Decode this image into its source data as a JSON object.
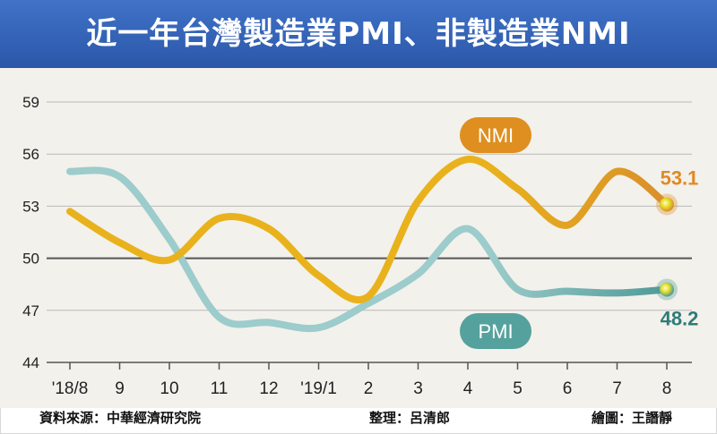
{
  "title": "近一年台灣製造業PMI、非製造業NMI",
  "footer": {
    "source": "資料來源：中華經濟研究院",
    "editor": "整理：呂清郎",
    "graphic": "繪圖：王譖靜"
  },
  "chart_data": {
    "type": "line",
    "title": "近一年台灣製造業PMI、非製造業NMI",
    "categories": [
      "'18/8",
      "9",
      "10",
      "11",
      "12",
      "'19/1",
      "2",
      "3",
      "4",
      "5",
      "6",
      "7",
      "8"
    ],
    "y_ticks": [
      44,
      47,
      50,
      53,
      56,
      59
    ],
    "ylim": [
      44,
      59
    ],
    "grid": true,
    "series": [
      {
        "name": "NMI",
        "color": "#e9b21c",
        "end_color": "#d98f2a",
        "values": [
          52.7,
          50.9,
          49.9,
          52.3,
          51.7,
          49.0,
          47.8,
          53.3,
          55.7,
          54.0,
          51.9,
          55.0,
          53.1
        ],
        "end_label": "53.1",
        "end_label_color": "#e08a22"
      },
      {
        "name": "PMI",
        "color": "#9ccccb",
        "end_color": "#4f9a97",
        "values": [
          55.0,
          54.7,
          51.1,
          46.6,
          46.3,
          46.0,
          47.4,
          49.1,
          51.7,
          48.2,
          48.1,
          48.0,
          48.2
        ],
        "end_label": "48.2",
        "end_label_color": "#2f7c78"
      }
    ],
    "reference_line": 50
  }
}
